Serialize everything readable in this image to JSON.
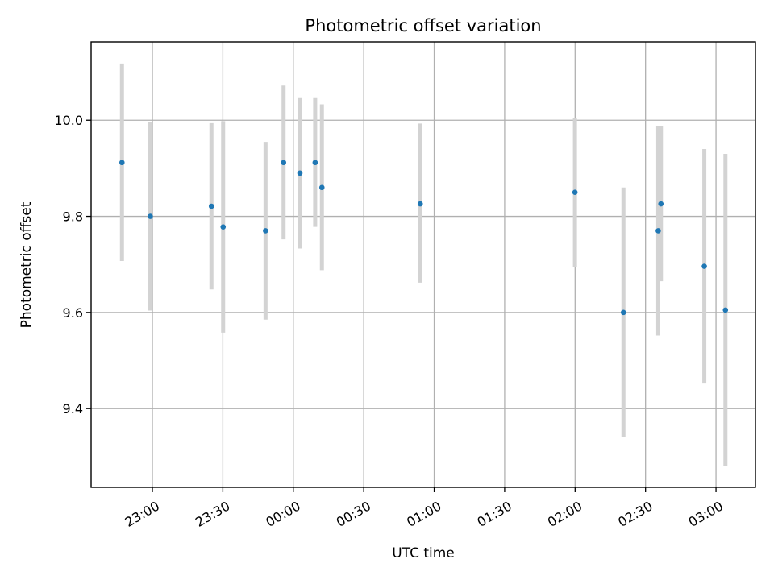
{
  "chart_data": {
    "type": "scatter",
    "title": "Photometric offset variation",
    "xlabel": "UTC time",
    "ylabel": "Photometric offset",
    "grid": true,
    "x_unit": "hours",
    "x_ticks": [
      {
        "value": 23.0,
        "label": "23:00"
      },
      {
        "value": 23.5,
        "label": "23:30"
      },
      {
        "value": 24.0,
        "label": "00:00"
      },
      {
        "value": 24.5,
        "label": "00:30"
      },
      {
        "value": 25.0,
        "label": "01:00"
      },
      {
        "value": 25.5,
        "label": "01:30"
      },
      {
        "value": 26.0,
        "label": "02:00"
      },
      {
        "value": 26.5,
        "label": "02:30"
      },
      {
        "value": 27.0,
        "label": "03:00"
      }
    ],
    "y_ticks": [
      {
        "value": 9.4,
        "label": "9.4"
      },
      {
        "value": 9.6,
        "label": "9.6"
      },
      {
        "value": 9.8,
        "label": "9.8"
      },
      {
        "value": 10.0,
        "label": "10.0"
      }
    ],
    "xlim": [
      22.565,
      27.28
    ],
    "ylim": [
      9.236,
      10.163
    ],
    "point_color": "#1f77b4",
    "errorbar_color": "#d3d3d3",
    "points": [
      {
        "x": 22.784,
        "y": 9.912,
        "err_low": 9.707,
        "err_high": 10.118
      },
      {
        "x": 22.985,
        "y": 9.8,
        "err_low": 9.604,
        "err_high": 9.996
      },
      {
        "x": 23.419,
        "y": 9.821,
        "err_low": 9.648,
        "err_high": 9.994
      },
      {
        "x": 23.502,
        "y": 9.778,
        "err_low": 9.558,
        "err_high": 9.998
      },
      {
        "x": 23.803,
        "y": 9.77,
        "err_low": 9.585,
        "err_high": 9.955
      },
      {
        "x": 23.931,
        "y": 9.912,
        "err_low": 9.752,
        "err_high": 10.072
      },
      {
        "x": 24.047,
        "y": 9.89,
        "err_low": 9.733,
        "err_high": 10.046
      },
      {
        "x": 24.155,
        "y": 9.912,
        "err_low": 9.778,
        "err_high": 10.046
      },
      {
        "x": 24.203,
        "y": 9.86,
        "err_low": 9.688,
        "err_high": 10.033
      },
      {
        "x": 24.901,
        "y": 9.826,
        "err_low": 9.662,
        "err_high": 9.993
      },
      {
        "x": 25.999,
        "y": 9.85,
        "err_low": 9.695,
        "err_high": 10.005
      },
      {
        "x": 26.343,
        "y": 9.6,
        "err_low": 9.34,
        "err_high": 9.86
      },
      {
        "x": 26.59,
        "y": 9.77,
        "err_low": 9.552,
        "err_high": 9.988
      },
      {
        "x": 26.609,
        "y": 9.826,
        "err_low": 9.665,
        "err_high": 9.988
      },
      {
        "x": 26.917,
        "y": 9.696,
        "err_low": 9.452,
        "err_high": 9.94
      },
      {
        "x": 27.067,
        "y": 9.605,
        "err_low": 9.28,
        "err_high": 9.93
      }
    ]
  }
}
